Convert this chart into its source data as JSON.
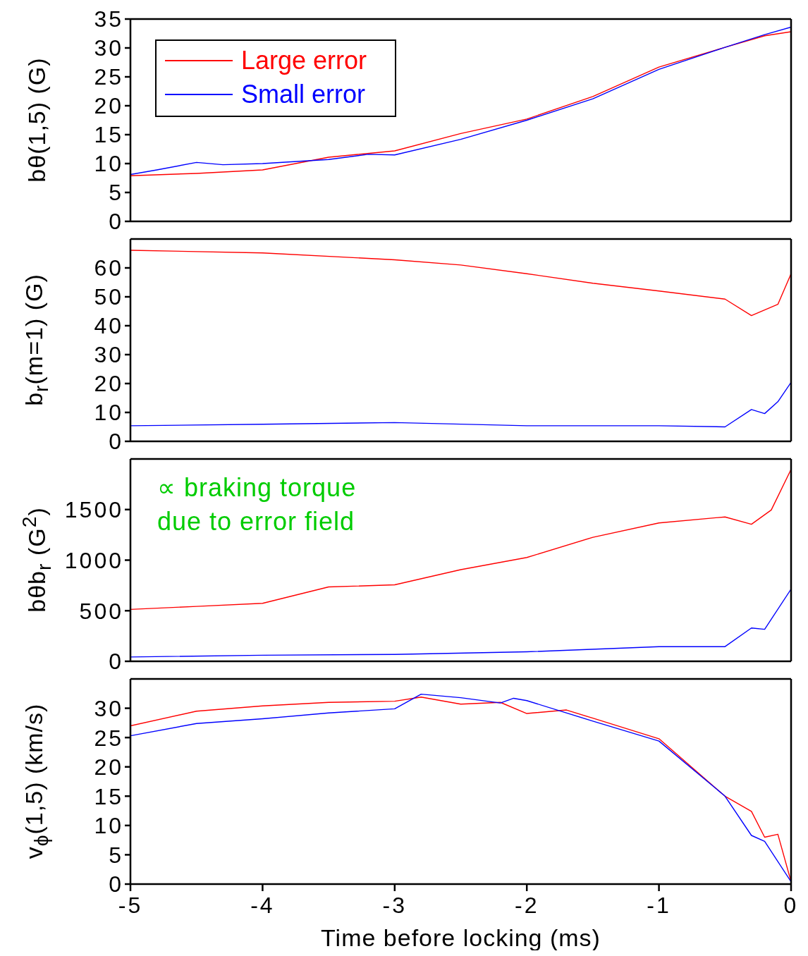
{
  "chart_data": [
    {
      "type": "line",
      "ylabel": "bθ(1,5)  (G)",
      "xlim": [
        -5,
        0
      ],
      "xticks": [
        -5,
        -4,
        -3,
        -2,
        -1,
        0
      ],
      "ylim": [
        0,
        35
      ],
      "yticks": [
        0,
        5,
        10,
        15,
        20,
        25,
        30,
        35
      ],
      "tick_labels": "y",
      "legend": "top left",
      "series": [
        {
          "name": "Large error",
          "color": "#ff0000",
          "x": [
            -5,
            -4.5,
            -4,
            -3.5,
            -3,
            -2.5,
            -2,
            -1.5,
            -1,
            -0.5,
            -0.2,
            0
          ],
          "values": [
            7.9,
            8.3,
            8.9,
            11.1,
            12.2,
            15.2,
            17.7,
            21.6,
            26.7,
            30.1,
            32.1,
            32.8
          ]
        },
        {
          "name": "Small error",
          "color": "#0000ff",
          "x": [
            -5,
            -4.8,
            -4.5,
            -4.3,
            -4,
            -3.5,
            -3.2,
            -3,
            -2.5,
            -2,
            -1.5,
            -1,
            -0.5,
            -0.2,
            0
          ],
          "values": [
            8.1,
            8.9,
            10.2,
            9.8,
            10,
            10.7,
            11.6,
            11.5,
            14.2,
            17.5,
            21.2,
            26.3,
            30.1,
            32.3,
            33.6
          ]
        }
      ]
    },
    {
      "type": "line",
      "ylabel": "b$_{r}$(m=1)  (G)",
      "xlim": [
        -5,
        0
      ],
      "xticks": [
        -5,
        -4,
        -3,
        -2,
        -1,
        0
      ],
      "ylim": [
        0,
        70
      ],
      "yticks": [
        0,
        10,
        20,
        30,
        40,
        50,
        60
      ],
      "tick_labels": "y",
      "series": [
        {
          "color": "#ff0000",
          "x": [
            -5,
            -4,
            -3,
            -2.5,
            -2,
            -1.5,
            -1,
            -0.5,
            -0.3,
            -0.1,
            0
          ],
          "values": [
            66.1,
            65.2,
            62.8,
            61,
            58,
            54.7,
            52,
            49.2,
            43.5,
            47.4,
            58
          ]
        },
        {
          "color": "#0000ff",
          "x": [
            -5,
            -4,
            -3,
            -2,
            -1,
            -0.5,
            -0.3,
            -0.2,
            -0.1,
            0
          ],
          "values": [
            5.4,
            5.9,
            6.5,
            5.4,
            5.4,
            5,
            11,
            9.6,
            13.7,
            20.4
          ]
        }
      ]
    },
    {
      "type": "line",
      "ylabel": "bθb$_{r}$ (G$^{2}$)",
      "xlim": [
        -5,
        0
      ],
      "xticks": [
        -5,
        -4,
        -3,
        -2,
        -1,
        0
      ],
      "ylim": [
        0,
        2000
      ],
      "yticks": [
        0,
        500,
        1000,
        1500
      ],
      "tick_labels": "y",
      "annotations": [
        "∝ braking torque due to error field"
      ],
      "series": [
        {
          "color": "#ff0000",
          "x": [
            -5,
            -4.5,
            -4,
            -3.5,
            -3,
            -2.5,
            -2,
            -1.5,
            -1,
            -0.5,
            -0.3,
            -0.15,
            0
          ],
          "values": [
            513,
            543,
            573,
            735,
            756,
            906,
            1026,
            1226,
            1368,
            1427,
            1355,
            1496,
            1897
          ]
        },
        {
          "color": "#0000ff",
          "x": [
            -5,
            -4,
            -3,
            -2,
            -1,
            -0.5,
            -0.3,
            -0.2,
            0
          ],
          "values": [
            43,
            60,
            68,
            94,
            145,
            145,
            329,
            316,
            714
          ]
        }
      ]
    },
    {
      "type": "line",
      "ylabel": "v$_{ϕ}$(1,5)  (km/s)",
      "xlabel": "Time before locking (ms)",
      "xlim": [
        -5,
        0
      ],
      "xticks": [
        -5,
        -4,
        -3,
        -2,
        -1,
        0
      ],
      "ylim": [
        0,
        35
      ],
      "yticks": [
        0,
        5,
        10,
        15,
        20,
        25,
        30
      ],
      "series": [
        {
          "color": "#ff0000",
          "x": [
            -5,
            -4.5,
            -4,
            -3.5,
            -3,
            -2.8,
            -2.5,
            -2.2,
            -2,
            -1.7,
            -1.5,
            -1,
            -0.5,
            -0.3,
            -0.2,
            -0.1,
            0
          ],
          "values": [
            27,
            29.5,
            30.4,
            31,
            31.2,
            31.9,
            30.7,
            31,
            29.1,
            29.7,
            28.3,
            24.8,
            15,
            12.4,
            8,
            8.5,
            0.4
          ]
        },
        {
          "color": "#0000ff",
          "x": [
            -5,
            -4.5,
            -4,
            -3.5,
            -3,
            -2.8,
            -2.5,
            -2.2,
            -2.1,
            -2,
            -1.5,
            -1,
            -0.5,
            -0.3,
            -0.2,
            0
          ],
          "values": [
            25.3,
            27.4,
            28.2,
            29.2,
            29.9,
            32.4,
            31.8,
            30.9,
            31.7,
            31.3,
            27.8,
            24.4,
            15,
            8.3,
            7.3,
            0.4
          ]
        }
      ]
    }
  ]
}
